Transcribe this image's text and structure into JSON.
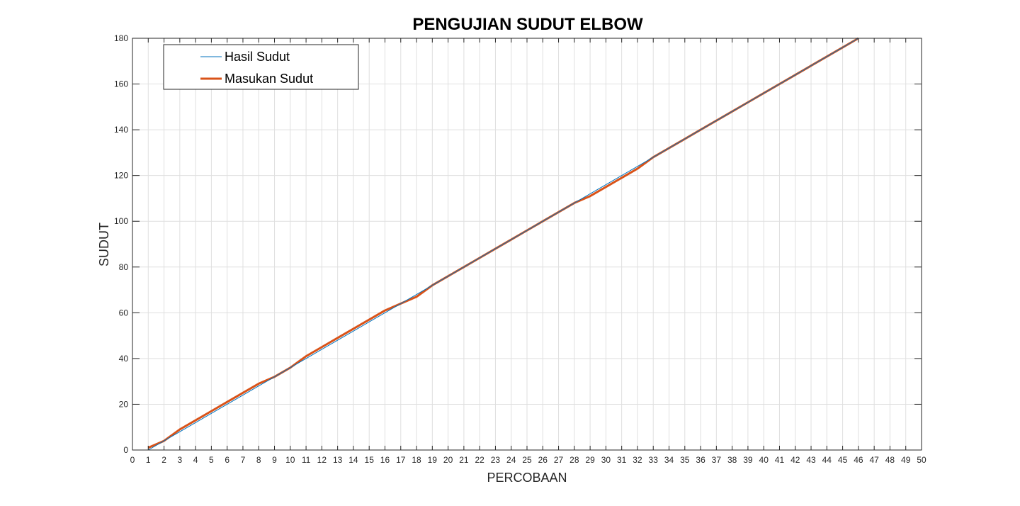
{
  "chart_data": {
    "type": "line",
    "title": "PENGUJIAN SUDUT ELBOW",
    "xlabel": "PERCOBAAN",
    "ylabel": "SUDUT",
    "xlim": [
      0,
      50
    ],
    "ylim": [
      0,
      180
    ],
    "xticks": [
      0,
      1,
      2,
      3,
      4,
      5,
      6,
      7,
      8,
      9,
      10,
      11,
      12,
      13,
      14,
      15,
      16,
      17,
      18,
      19,
      20,
      21,
      22,
      23,
      24,
      25,
      26,
      27,
      28,
      29,
      30,
      31,
      32,
      33,
      34,
      35,
      36,
      37,
      38,
      39,
      40,
      41,
      42,
      43,
      44,
      45,
      46,
      47,
      48,
      49,
      50
    ],
    "yticks": [
      0,
      20,
      40,
      60,
      80,
      100,
      120,
      140,
      160,
      180
    ],
    "grid": true,
    "legend_position": "top-left",
    "series": [
      {
        "name": "Hasil Sudut",
        "color": "#0072bd",
        "x": [
          1,
          2,
          3,
          4,
          5,
          6,
          7,
          8,
          9,
          10,
          11,
          12,
          13,
          14,
          15,
          16,
          17,
          18,
          19,
          20,
          21,
          22,
          23,
          24,
          25,
          26,
          27,
          28,
          29,
          30,
          31,
          32,
          33,
          34,
          35,
          36,
          37,
          38,
          39,
          40,
          41,
          42,
          43,
          44,
          45,
          46
        ],
        "values": [
          0,
          4,
          8,
          12,
          16,
          20,
          24,
          28,
          32,
          36,
          40,
          44,
          48,
          52,
          56,
          60,
          64,
          68,
          72,
          76,
          80,
          84,
          88,
          92,
          96,
          100,
          104,
          108,
          112,
          116,
          120,
          124,
          128,
          132,
          136,
          140,
          144,
          148,
          152,
          156,
          160,
          164,
          168,
          172,
          176,
          180
        ]
      },
      {
        "name": "Masukan Sudut",
        "color": "#d95319",
        "x": [
          1,
          2,
          3,
          4,
          5,
          6,
          7,
          8,
          9,
          10,
          11,
          12,
          13,
          14,
          15,
          16,
          17,
          18,
          19,
          20,
          21,
          22,
          23,
          24,
          25,
          26,
          27,
          28,
          29,
          30,
          31,
          32,
          33,
          34,
          35,
          36,
          37,
          38,
          39,
          40,
          41,
          42,
          43,
          44,
          45,
          46
        ],
        "values": [
          1,
          4,
          9,
          13,
          17,
          21,
          25,
          29,
          32,
          36,
          41,
          45,
          49,
          53,
          57,
          61,
          64,
          67,
          72,
          76,
          80,
          84,
          88,
          92,
          96,
          100,
          104,
          108,
          111,
          115,
          119,
          123,
          128,
          132,
          136,
          140,
          144,
          148,
          152,
          156,
          160,
          164,
          168,
          172,
          176,
          180
        ]
      }
    ]
  }
}
